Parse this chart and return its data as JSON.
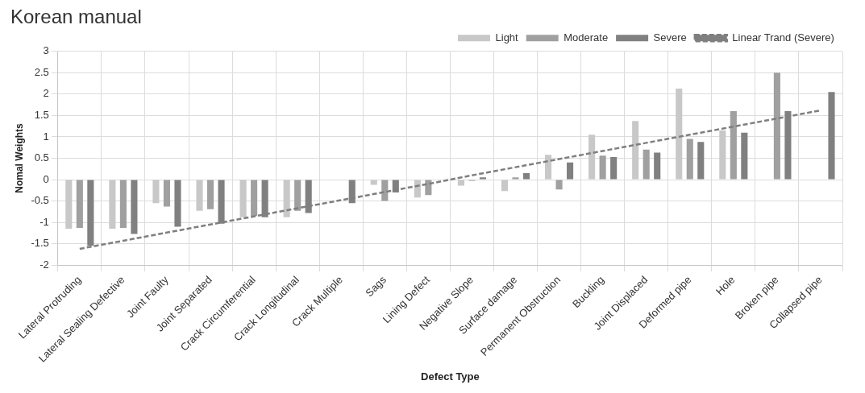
{
  "chart_data": {
    "type": "bar",
    "title": "Korean manual",
    "xlabel": "Defect Type",
    "ylabel": "Nomal Weights",
    "categories": [
      "Lateral Protruding",
      "Lateral Sealing Defective",
      "Joint Faulty",
      "Joint Separated",
      "Crack Circumferential",
      "Crack Longitudinal",
      "Crack Multiple",
      "Sags",
      "Lining Defect",
      "Negative Slope",
      "Surface damage",
      "Permanent Obstruction",
      "Buckling",
      "Joint Displaced",
      "Deformed pipe",
      "Hole",
      "Broken pipe",
      "Collapsed pipe"
    ],
    "series": [
      {
        "name": "Light",
        "color": "#c8c8c8",
        "values": [
          -1.15,
          -1.15,
          -0.55,
          -0.73,
          -0.88,
          -0.88,
          null,
          -0.12,
          -0.42,
          -0.14,
          -0.27,
          0.58,
          1.05,
          1.37,
          2.13,
          1.15,
          null,
          null
        ]
      },
      {
        "name": "Moderate",
        "color": "#a0a0a0",
        "values": [
          -1.13,
          -1.13,
          -0.63,
          -0.69,
          -0.85,
          -0.73,
          null,
          -0.5,
          -0.36,
          -0.03,
          0.05,
          -0.23,
          0.56,
          0.7,
          0.95,
          1.6,
          2.5,
          null
        ]
      },
      {
        "name": "Severe",
        "color": "#808080",
        "values": [
          -1.55,
          -1.27,
          -1.1,
          -1.03,
          -0.88,
          -0.78,
          -0.55,
          -0.3,
          null,
          0.05,
          0.15,
          0.4,
          0.53,
          0.63,
          0.88,
          1.1,
          1.6,
          2.05
        ]
      },
      {
        "name": "Linear Trand (Severe)",
        "type": "line",
        "line_style": "dashed",
        "color": "#7f7f7f",
        "values": [
          -1.62,
          -1.43,
          -1.24,
          -1.05,
          -0.86,
          -0.67,
          -0.48,
          -0.29,
          -0.1,
          0.1,
          0.29,
          0.48,
          0.67,
          0.86,
          1.05,
          1.24,
          1.43,
          1.62
        ]
      }
    ],
    "ylim": [
      -2,
      3
    ],
    "yticks": [
      -2,
      -1.5,
      -1,
      -0.5,
      0,
      0.5,
      1,
      1.5,
      2,
      2.5,
      3
    ],
    "grid": true,
    "legend": "top",
    "marker": "none"
  }
}
